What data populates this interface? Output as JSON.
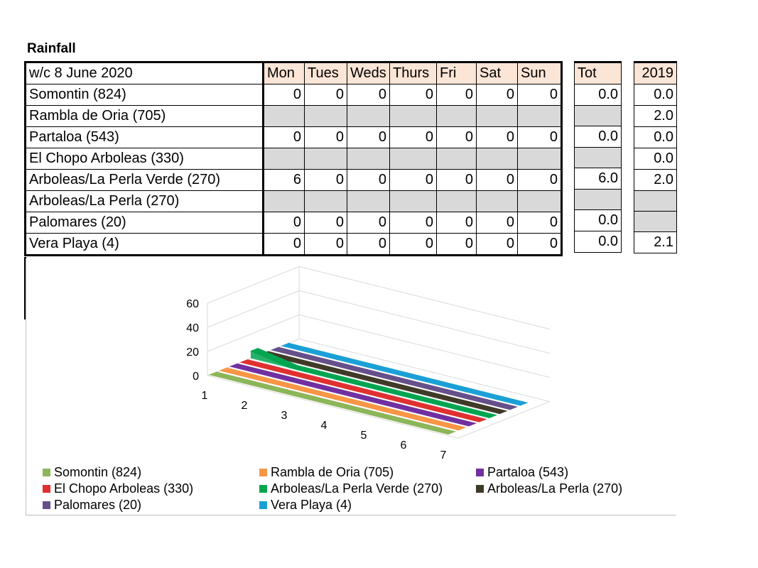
{
  "title": "Rainfall",
  "table": {
    "week_label": "w/c 8 June  2020",
    "days": [
      "Mon",
      "Tues",
      "Weds",
      "Thurs",
      "Fri",
      "Sat",
      "Sun"
    ],
    "tot_label": "Tot",
    "year_label": "2019",
    "rows": [
      {
        "label": "Somontin (824)",
        "values": [
          "0",
          "0",
          "0",
          "0",
          "0",
          "0",
          "0"
        ],
        "tot": "0.0",
        "y2019": "0.0"
      },
      {
        "label": "Rambla de Oria (705)",
        "values": null,
        "tot": null,
        "y2019": "2.0"
      },
      {
        "label": "Partaloa (543)",
        "values": [
          "0",
          "0",
          "0",
          "0",
          "0",
          "0",
          "0"
        ],
        "tot": "0.0",
        "y2019": "0.0"
      },
      {
        "label": "El Chopo Arboleas (330)",
        "values": null,
        "tot": null,
        "y2019": "0.0"
      },
      {
        "label": "Arboleas/La Perla Verde (270)",
        "values": [
          "6",
          "0",
          "0",
          "0",
          "0",
          "0",
          "0"
        ],
        "tot": "6.0",
        "y2019": "2.0"
      },
      {
        "label": "Arboleas/La Perla (270)",
        "values": null,
        "tot": null,
        "y2019": null
      },
      {
        "label": "Palomares (20)",
        "values": [
          "0",
          "0",
          "0",
          "0",
          "0",
          "0",
          "0"
        ],
        "tot": "0.0",
        "y2019": null
      },
      {
        "label": "Vera Playa (4)",
        "values": [
          "0",
          "0",
          "0",
          "0",
          "0",
          "0",
          "0"
        ],
        "tot": "0.0",
        "y2019": "2.1"
      }
    ]
  },
  "chart_data": {
    "type": "area",
    "categories": [
      "1",
      "2",
      "3",
      "4",
      "5",
      "6",
      "7"
    ],
    "yticks": [
      "0",
      "20",
      "40",
      "60"
    ],
    "ylim": [
      0,
      60
    ],
    "series": [
      {
        "name": "Somontin (824)",
        "color": "#8db55a",
        "values": [
          0,
          0,
          0,
          0,
          0,
          0,
          0
        ]
      },
      {
        "name": "Rambla de Oria (705)",
        "color": "#f79646",
        "values": [
          0,
          0,
          0,
          0,
          0,
          0,
          0
        ]
      },
      {
        "name": "Partaloa (543)",
        "color": "#7030a0",
        "values": [
          0,
          0,
          0,
          0,
          0,
          0,
          0
        ]
      },
      {
        "name": "El Chopo Arboleas (330)",
        "color": "#e03030",
        "values": [
          0,
          0,
          0,
          0,
          0,
          0,
          0
        ]
      },
      {
        "name": "Arboleas/La Perla Verde (270)",
        "color": "#00a550",
        "values": [
          6,
          0,
          0,
          0,
          0,
          0,
          0
        ]
      },
      {
        "name": "Arboleas/La Perla (270)",
        "color": "#403a28",
        "values": [
          0,
          0,
          0,
          0,
          0,
          0,
          0
        ]
      },
      {
        "name": "Palomares (20)",
        "color": "#65508a",
        "values": [
          0,
          0,
          0,
          0,
          0,
          0,
          0
        ]
      },
      {
        "name": "Vera Playa (4)",
        "color": "#1aa0d6",
        "values": [
          0,
          0,
          0,
          0,
          0,
          0,
          0
        ]
      }
    ],
    "legend_position": "bottom"
  }
}
